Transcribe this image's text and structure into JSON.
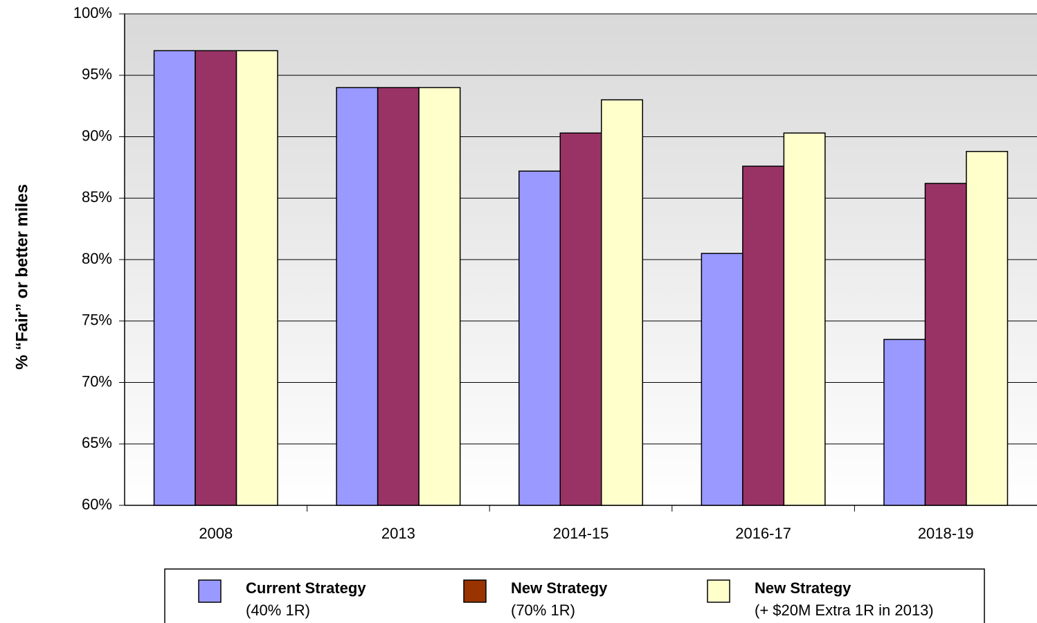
{
  "chart_data": {
    "type": "bar",
    "y_label": "% “Fair” or better miles",
    "categories": [
      "2008",
      "2013",
      "2014-15",
      "2016-17",
      "2018-19"
    ],
    "series": [
      {
        "name": "Current Strategy",
        "description": "(40% 1R)",
        "color": "#9999ff",
        "legend_color": "#9999ff",
        "values": [
          97,
          94,
          87.2,
          80.5,
          73.5
        ]
      },
      {
        "name": "New Strategy",
        "description": "(70% 1R)",
        "color": "#993366",
        "legend_color": "#993300",
        "values": [
          97,
          94,
          90.3,
          87.6,
          86.2
        ]
      },
      {
        "name": "New Strategy",
        "description": "(+ $20M Extra 1R in 2013)",
        "color": "#ffffcc",
        "legend_color": "#ffffcc",
        "values": [
          97,
          94,
          93,
          90.3,
          88.8
        ]
      }
    ],
    "ylim": [
      60,
      100
    ],
    "yticks": [
      {
        "value": 60,
        "label": "60%"
      },
      {
        "value": 65,
        "label": "65%"
      },
      {
        "value": 70,
        "label": "70%"
      },
      {
        "value": 75,
        "label": "75%"
      },
      {
        "value": 80,
        "label": "80%"
      },
      {
        "value": 85,
        "label": "85%"
      },
      {
        "value": 90,
        "label": "90%"
      },
      {
        "value": 95,
        "label": "95%"
      },
      {
        "value": 100,
        "label": "100%"
      }
    ],
    "grid": true,
    "legend": "bottom"
  }
}
